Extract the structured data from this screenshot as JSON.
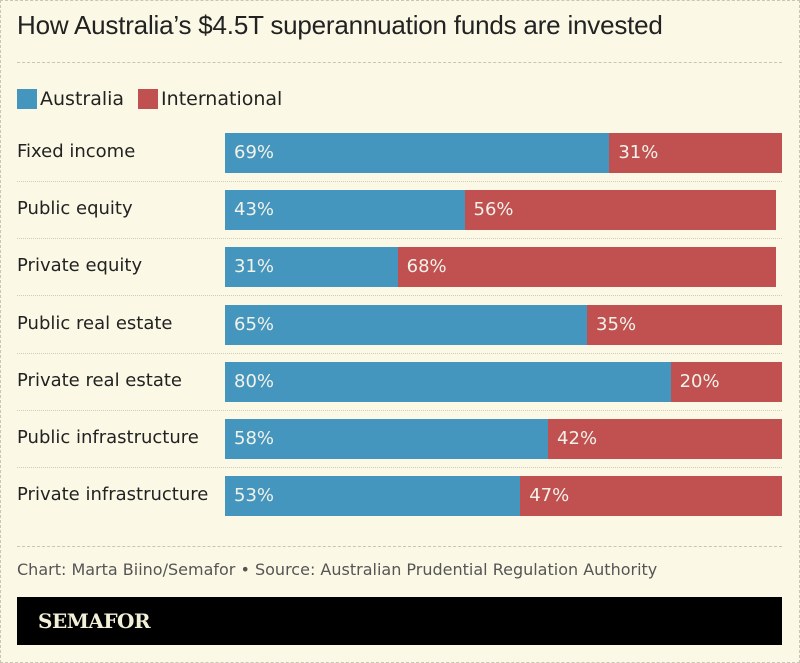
{
  "title": "How Australia’s $4.5T superannuation funds are invested",
  "legend": [
    {
      "label": "Australia",
      "color": "#4596be"
    },
    {
      "label": "International",
      "color": "#c05150"
    }
  ],
  "rows": [
    {
      "label": "Fixed income",
      "australia": 69,
      "international": 31,
      "australia_label": "69%",
      "international_label": "31%"
    },
    {
      "label": "Public equity",
      "australia": 43,
      "international": 56,
      "australia_label": "43%",
      "international_label": "56%"
    },
    {
      "label": "Private equity",
      "australia": 31,
      "international": 68,
      "australia_label": "31%",
      "international_label": "68%"
    },
    {
      "label": "Public real estate",
      "australia": 65,
      "international": 35,
      "australia_label": "65%",
      "international_label": "35%"
    },
    {
      "label": "Private real estate",
      "australia": 80,
      "international": 20,
      "australia_label": "80%",
      "international_label": "20%"
    },
    {
      "label": "Public infrastructure",
      "australia": 58,
      "international": 42,
      "australia_label": "58%",
      "international_label": "42%"
    },
    {
      "label": "Private infrastructure",
      "australia": 53,
      "international": 47,
      "australia_label": "53%",
      "international_label": "47%"
    }
  ],
  "credit": "Chart: Marta Biino/Semafor • Source: Australian Prudential Regulation Authority",
  "brand": "SEMAFOR",
  "colors": {
    "australia": "#4596be",
    "international": "#c05150",
    "background": "#fbf9e6"
  },
  "chart_data": {
    "type": "bar",
    "orientation": "horizontal",
    "stacked": true,
    "title": "How Australia’s $4.5T superannuation funds are invested",
    "categories": [
      "Fixed income",
      "Public equity",
      "Private equity",
      "Public real estate",
      "Private real estate",
      "Public infrastructure",
      "Private infrastructure"
    ],
    "series": [
      {
        "name": "Australia",
        "values": [
          69,
          43,
          31,
          65,
          80,
          58,
          53
        ],
        "color": "#4596be"
      },
      {
        "name": "International",
        "values": [
          31,
          56,
          68,
          35,
          20,
          42,
          47
        ],
        "color": "#c05150"
      }
    ],
    "xlabel": "",
    "ylabel": "",
    "xlim": [
      0,
      100
    ],
    "unit": "%",
    "legend_position": "top-left",
    "grid": false,
    "annotations": [
      "Chart: Marta Biino/Semafor • Source: Australian Prudential Regulation Authority"
    ]
  }
}
